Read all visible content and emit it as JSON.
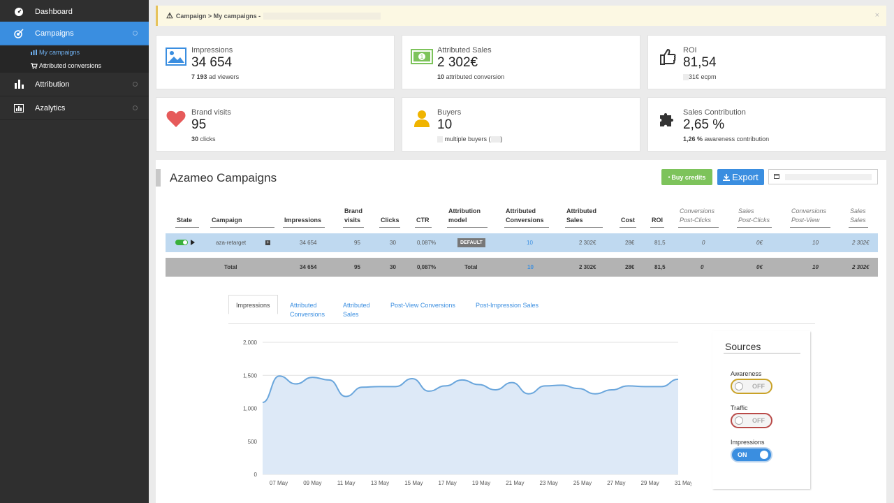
{
  "sidebar": {
    "items": [
      {
        "label": "Dashboard"
      },
      {
        "label": "Campaigns"
      },
      {
        "label": "Attribution"
      },
      {
        "label": "Azalytics"
      }
    ],
    "sub_items": [
      {
        "label": "My campaigns"
      },
      {
        "label": "Attributed conversions"
      }
    ]
  },
  "alert": {
    "breadcrumb": "Campaign > My campaigns -",
    "close": "×"
  },
  "stats": [
    {
      "label": "Impressions",
      "value": "34 654",
      "sub_bold": "7 193",
      "sub_text": "ad viewers"
    },
    {
      "label": "Attributed Sales",
      "value": "2 302€",
      "sub_bold": "10",
      "sub_text": "attributed conversion"
    },
    {
      "label": "ROI",
      "value": "81,54",
      "sub_bold": "31€",
      "sub_text": "ecpm"
    },
    {
      "label": "Brand visits",
      "value": "95",
      "sub_bold": "30",
      "sub_text": "clicks"
    },
    {
      "label": "Buyers",
      "value": "10",
      "sub_bold": "",
      "sub_text": "multiple buyers (",
      "sub_tail": ")"
    },
    {
      "label": "Sales Contribution",
      "value": "2,65 %",
      "sub_bold": "1,26 %",
      "sub_text": "awareness contribution"
    }
  ],
  "panel": {
    "title": "Azameo Campaigns",
    "buy_credits": "Buy credits",
    "export": "Export"
  },
  "table": {
    "headers": [
      "State",
      "Campaign",
      "Impressions",
      "Brand\nvisits",
      "Clicks",
      "CTR",
      "Attribution\nmodel",
      "Attributed\nConversions",
      "Attributed\nSales",
      "Cost",
      "ROI",
      "Conversions\nPost-Clicks",
      "Sales\nPost-Clicks",
      "Conversions\nPost-View",
      "Sales\nSales"
    ],
    "row": {
      "campaign": "aza-retarget",
      "plus": "+",
      "impressions": "34 654",
      "brand_visits": "95",
      "clicks": "30",
      "ctr": "0,087%",
      "model": "DEFAULT",
      "conversions": "10",
      "sales": "2 302€",
      "cost": "28€",
      "roi": "81,5",
      "conv_post_clicks": "0",
      "sales_post_clicks": "0€",
      "conv_post_view": "10",
      "sales_sales": "2 302€"
    },
    "total": {
      "label": "Total",
      "impressions": "34 654",
      "brand_visits": "95",
      "clicks": "30",
      "ctr": "0,087%",
      "model": "Total",
      "conversions": "10",
      "sales": "2 302€",
      "cost": "28€",
      "roi": "81,5",
      "conv_post_clicks": "0",
      "sales_post_clicks": "0€",
      "conv_post_view": "10",
      "sales_sales": "2 302€"
    }
  },
  "tabs": [
    {
      "label": "Impressions"
    },
    {
      "label": "Attributed\nConversions"
    },
    {
      "label": "Attributed\nSales"
    },
    {
      "label": "Post-View Conversions"
    },
    {
      "label": "Post-Impression Sales"
    }
  ],
  "sources": {
    "title": "Sources",
    "items": [
      {
        "label": "Awareness",
        "state": "OFF",
        "color": "#c9a227"
      },
      {
        "label": "Traffic",
        "state": "OFF",
        "color": "#b94a48"
      },
      {
        "label": "Impressions",
        "state": "ON",
        "color": "#3a8ee0"
      }
    ]
  },
  "chart_data": {
    "type": "area",
    "yticks": [
      "2,000",
      "1,500",
      "1,000",
      "500",
      "0"
    ],
    "ylim": [
      0,
      2000
    ],
    "xticks": [
      "07 May",
      "09 May",
      "11 May",
      "13 May",
      "15 May",
      "17 May",
      "19 May",
      "21 May",
      "23 May",
      "25 May",
      "27 May",
      "29 May",
      "31 May"
    ],
    "series": [
      {
        "values": [
          1090,
          1490,
          1370,
          1470,
          1430,
          1180,
          1320,
          1330,
          1330,
          1450,
          1260,
          1340,
          1430,
          1360,
          1280,
          1390,
          1220,
          1340,
          1350,
          1300,
          1220,
          1280,
          1340,
          1330,
          1330,
          1440
        ]
      }
    ],
    "colors": {
      "line": "#6aa6dc",
      "fill": "#dde9f7",
      "grid": "#e2e2e2"
    }
  }
}
